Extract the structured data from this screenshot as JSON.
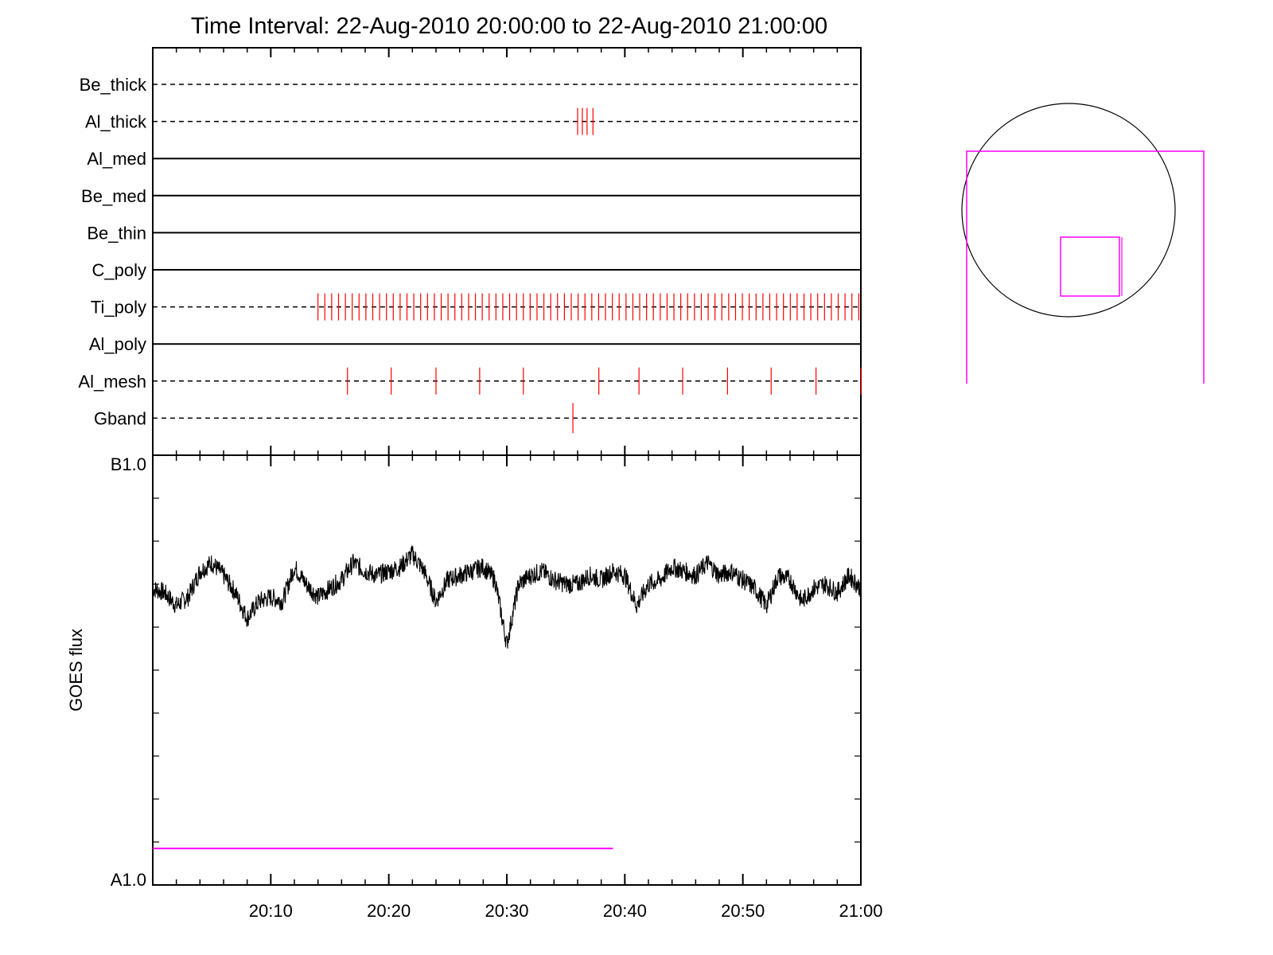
{
  "chart_data": [
    {
      "type": "event-timeline",
      "title": "Time Interval: 22-Aug-2010 20:00:00 to 22-Aug-2010 21:00:00",
      "x_range": [
        "20:00",
        "21:00"
      ],
      "rows": [
        {
          "label": "Be_thick",
          "line": "dashed",
          "events": [],
          "event_span": "short"
        },
        {
          "label": "Al_thick",
          "line": "dashed",
          "events": [
            36.0,
            36.4,
            36.8,
            37.3
          ],
          "event_span": "short"
        },
        {
          "label": "Al_med",
          "line": "solid",
          "events": [],
          "event_span": "short"
        },
        {
          "label": "Be_med",
          "line": "solid",
          "events": [],
          "event_span": "short"
        },
        {
          "label": "Be_thin",
          "line": "solid",
          "events": [],
          "event_span": "short"
        },
        {
          "label": "C_poly",
          "line": "solid",
          "events": [],
          "event_span": "short"
        },
        {
          "label": "Ti_poly",
          "line": "dashed",
          "events": [],
          "event_span": "short",
          "dense_events": {
            "start": 14.0,
            "end": 60.0,
            "step": 0.58
          }
        },
        {
          "label": "Al_poly",
          "line": "solid",
          "events": [],
          "event_span": "short"
        },
        {
          "label": "Al_mesh",
          "line": "dashed",
          "events": [
            16.5,
            20.2,
            24.0,
            27.7,
            31.4,
            37.8,
            41.2,
            44.9,
            48.7,
            52.4,
            56.2,
            60.0
          ],
          "event_span": "short"
        },
        {
          "label": "Gband",
          "line": "dashed",
          "events": [
            35.6
          ],
          "event_span": "tall"
        }
      ],
      "event_color": "#ff0000"
    },
    {
      "type": "line",
      "xlabel": "",
      "ylabel": "GOES flux",
      "y_tick_labels": {
        "top": "B1.0",
        "bottom": "A1.0"
      },
      "ylim_labels": [
        "A1.0",
        "B1.0"
      ],
      "x_ticks": [
        "20:10",
        "20:20",
        "20:30",
        "20:40",
        "20:50",
        "21:00"
      ],
      "x_range_minutes": [
        0,
        60
      ],
      "series": [
        {
          "color": "#000000",
          "level_fraction_of_axis": 0.69,
          "x_minutes": [
            0,
            1,
            2,
            3,
            4,
            5,
            6,
            7,
            8,
            9,
            10,
            11,
            12,
            13,
            14,
            15,
            16,
            17,
            18,
            19,
            20,
            21,
            22,
            23,
            24,
            25,
            26,
            27,
            28,
            29,
            30,
            31,
            32,
            33,
            34,
            35,
            36,
            37,
            38,
            39,
            40,
            41,
            42,
            43,
            44,
            45,
            46,
            47,
            48,
            49,
            50,
            51,
            52,
            53,
            54,
            55,
            56,
            57,
            58,
            59,
            60
          ],
          "level_fraction": [
            0.69,
            0.68,
            0.65,
            0.67,
            0.73,
            0.75,
            0.72,
            0.68,
            0.62,
            0.66,
            0.67,
            0.66,
            0.74,
            0.7,
            0.67,
            0.69,
            0.71,
            0.75,
            0.73,
            0.72,
            0.73,
            0.74,
            0.77,
            0.73,
            0.66,
            0.71,
            0.72,
            0.73,
            0.74,
            0.71,
            0.56,
            0.7,
            0.72,
            0.73,
            0.71,
            0.7,
            0.7,
            0.72,
            0.71,
            0.73,
            0.72,
            0.65,
            0.7,
            0.71,
            0.74,
            0.73,
            0.72,
            0.75,
            0.72,
            0.73,
            0.71,
            0.69,
            0.65,
            0.72,
            0.71,
            0.66,
            0.69,
            0.7,
            0.68,
            0.72,
            0.69
          ]
        },
        {
          "color": "#ff00ff",
          "x_minutes": [
            0,
            39
          ],
          "level_fraction": [
            0.085,
            0.085
          ]
        }
      ]
    },
    {
      "type": "diagram",
      "circle_color": "#000000",
      "frame_color": "#ff00ff",
      "box_color": "#ff00ff"
    }
  ]
}
